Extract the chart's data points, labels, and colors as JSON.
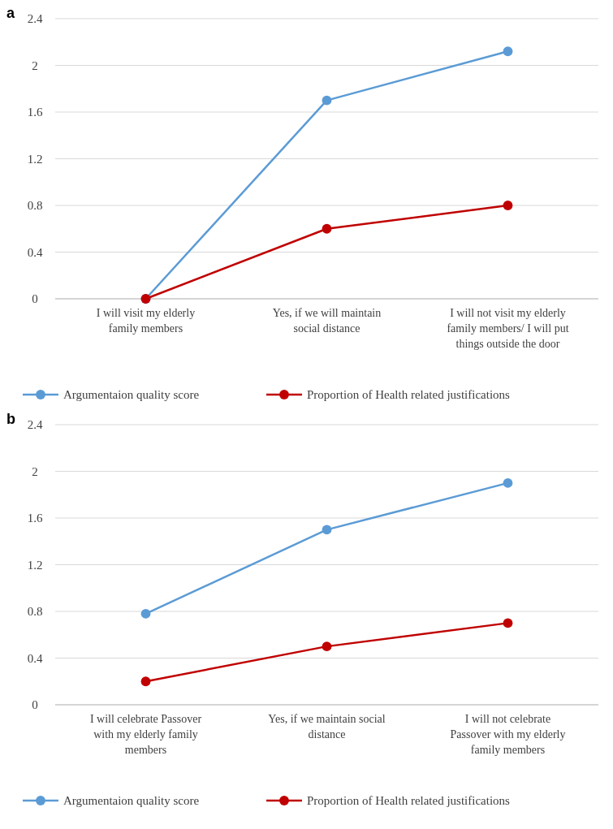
{
  "chart_data": [
    {
      "type": "line",
      "title": "a",
      "categories": [
        "I will visit my elderly family members",
        "Yes, if we will maintain social distance",
        "I will not visit my elderly family members/ I will put things outside the door"
      ],
      "series": [
        {
          "name": "Argumentaion quality score",
          "color": "#5b9bd5",
          "values": [
            0,
            1.7,
            2.12
          ]
        },
        {
          "name": "Proportion of Health related justifications",
          "color": "#c00000",
          "values": [
            0,
            0.6,
            0.8
          ]
        }
      ],
      "ylim": [
        0,
        2.4
      ],
      "yticks": [
        0,
        0.4,
        0.8,
        1.2,
        1.6,
        2,
        2.4
      ],
      "grid": "y",
      "legend": "bottom",
      "marker": "circle",
      "line_style": "solid"
    },
    {
      "type": "line",
      "title": "b",
      "categories": [
        "I will celebrate Passover with my elderly family members",
        "Yes, if we maintain social distance",
        "I will not celebrate Passover with my elderly family members"
      ],
      "series": [
        {
          "name": "Argumentaion quality score",
          "color": "#5b9bd5",
          "values": [
            0.78,
            1.5,
            1.9
          ]
        },
        {
          "name": "Proportion of Health related justifications",
          "color": "#c00000",
          "values": [
            0.2,
            0.5,
            0.7
          ]
        }
      ],
      "ylim": [
        0,
        2.4
      ],
      "yticks": [
        0,
        0.4,
        0.8,
        1.2,
        1.6,
        2,
        2.4
      ],
      "grid": "y",
      "legend": "bottom",
      "marker": "circle",
      "line_style": "solid"
    }
  ]
}
